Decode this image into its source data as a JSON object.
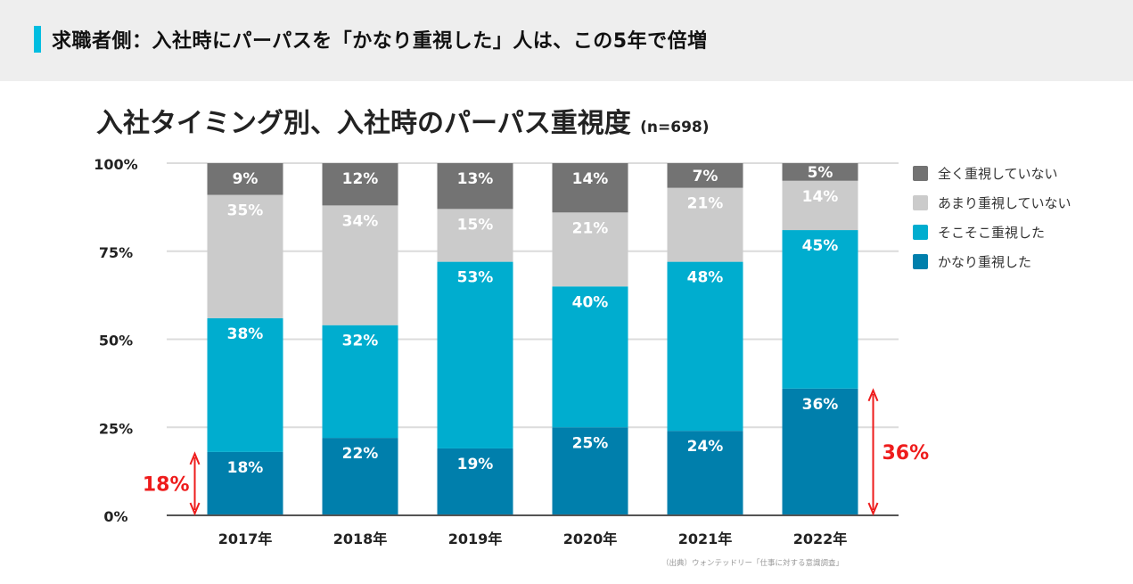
{
  "header": {
    "title": "求職者側：入社時にパーパスを「かなり重視した」人は、この5年で倍増",
    "accent_color": "#00bde0"
  },
  "chart_title": {
    "main": "入社タイミング別、入社時のパーパス重視度",
    "note": "(n=698)"
  },
  "source": "（出典）ウォンテッドリー「仕事に対する意識調査」",
  "chart_data": {
    "type": "bar",
    "stacked": true,
    "title": "入社タイミング別、入社時のパーパス重視度 (n=698)",
    "xlabel": "",
    "ylabel": "",
    "ylim": [
      0,
      100
    ],
    "yticks": [
      0,
      25,
      50,
      75,
      100
    ],
    "ytick_labels": [
      "0%",
      "25%",
      "50%",
      "75%",
      "100%"
    ],
    "grid": true,
    "legend_position": "right",
    "categories": [
      "2017年",
      "2018年",
      "2019年",
      "2020年",
      "2021年",
      "2022年"
    ],
    "series": [
      {
        "name": "かなり重視した",
        "color": "#007fac",
        "values": [
          18,
          22,
          19,
          25,
          24,
          36
        ]
      },
      {
        "name": "そこそこ重視した",
        "color": "#00adcf",
        "values": [
          38,
          32,
          53,
          40,
          48,
          45
        ]
      },
      {
        "name": "あまり重視していない",
        "color": "#cbcbcb",
        "values": [
          35,
          34,
          15,
          21,
          21,
          14
        ]
      },
      {
        "name": "全く重視していない",
        "color": "#737373",
        "values": [
          9,
          12,
          13,
          14,
          7,
          5
        ]
      }
    ],
    "legend_order": [
      "全く重視していない",
      "あまり重視していない",
      "そこそこ重視した",
      "かなり重視した"
    ],
    "annotations": [
      {
        "text": "18%",
        "category": "2017年",
        "side": "left",
        "from": 0,
        "to": 18,
        "color": "#ee1c1c"
      },
      {
        "text": "36%",
        "category": "2022年",
        "side": "right",
        "from": 0,
        "to": 36,
        "color": "#ee1c1c"
      }
    ]
  }
}
